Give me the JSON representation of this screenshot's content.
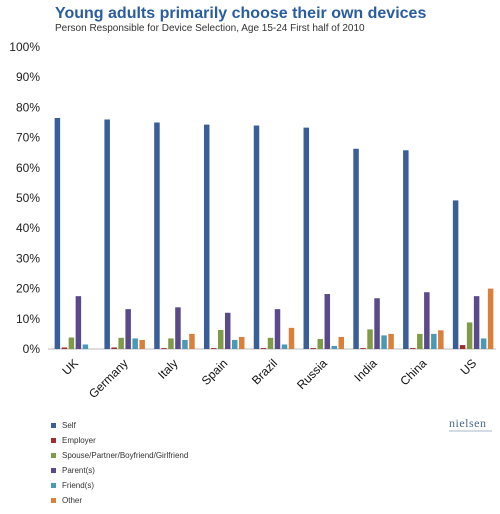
{
  "chart_data": {
    "type": "bar",
    "title": "Young adults primarily choose their own devices",
    "subtitle": "Person Responsible for Device Selection, Age 15-24 First half of 2010",
    "categories": [
      "UK",
      "Germany",
      "Italy",
      "Spain",
      "Brazil",
      "Russia",
      "India",
      "China",
      "US"
    ],
    "ylim": [
      0,
      100
    ],
    "yticks": [
      "0%",
      "10%",
      "20%",
      "30%",
      "40%",
      "50%",
      "60%",
      "70%",
      "80%",
      "90%",
      "100%"
    ],
    "grid": false,
    "legend_position": "bottom-left",
    "series": [
      {
        "name": "Self",
        "color": "#3a5e97",
        "values": [
          76.5,
          76,
          75,
          74.3,
          74,
          73.3,
          66.3,
          65.8,
          49.2
        ]
      },
      {
        "name": "Employer",
        "color": "#9c2f2f",
        "values": [
          0.5,
          0.5,
          0.3,
          0.3,
          0.3,
          0.3,
          0.3,
          0.3,
          1.3
        ]
      },
      {
        "name": "Spouse/Partner/Boyfriend/Girlfriend",
        "color": "#7f9a48",
        "values": [
          3.8,
          3.7,
          3.5,
          6.3,
          3.7,
          3.3,
          6.5,
          5,
          8.8
        ]
      },
      {
        "name": "Parent(s)",
        "color": "#5a4a8a",
        "values": [
          17.5,
          13.2,
          13.8,
          12,
          13.2,
          18.2,
          16.8,
          18.8,
          17.5
        ]
      },
      {
        "name": "Friend(s)",
        "color": "#4a9ab5",
        "values": [
          1.5,
          3.5,
          3,
          3,
          1.5,
          1,
          4.5,
          5,
          3.5
        ]
      },
      {
        "name": "Other",
        "color": "#d9803a",
        "values": [
          0,
          3,
          5,
          4,
          7,
          4,
          5,
          6.2,
          20
        ]
      }
    ]
  },
  "branding": {
    "logo_text": "nielsen"
  }
}
